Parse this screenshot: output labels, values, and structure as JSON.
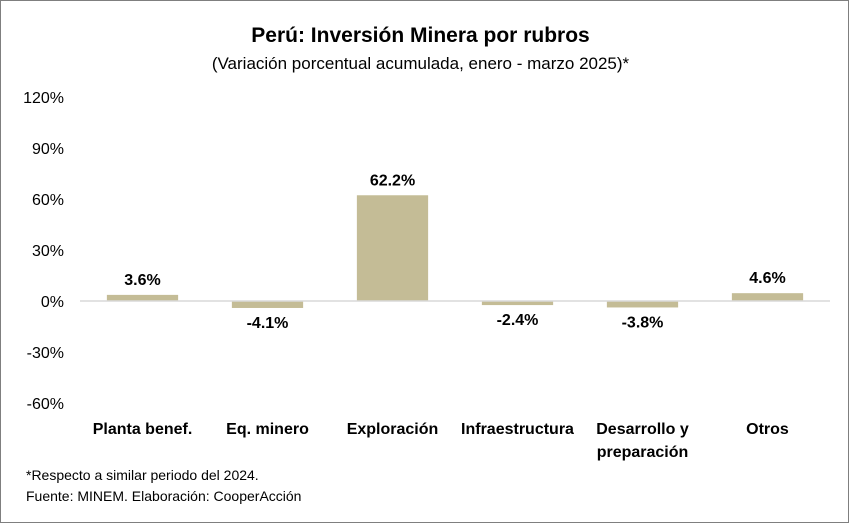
{
  "chart_data": {
    "type": "bar",
    "title": "Perú: Inversión Minera por rubros",
    "subtitle": "(Variación porcentual acumulada, enero - marzo 2025)*",
    "categories": [
      [
        "Planta benef."
      ],
      [
        "Eq. minero"
      ],
      [
        "Exploración"
      ],
      [
        "Infraestructura"
      ],
      [
        "Desarrollo y",
        "preparación"
      ],
      [
        "Otros"
      ]
    ],
    "values": [
      3.6,
      -4.1,
      62.2,
      -2.4,
      -3.8,
      4.6
    ],
    "data_labels": [
      "3.6%",
      "-4.1%",
      "62.2%",
      "-2.4%",
      "-3.8%",
      "4.6%"
    ],
    "ylim": [
      -60,
      120
    ],
    "yticks": [
      120,
      90,
      60,
      30,
      0,
      -30,
      -60
    ],
    "ytick_labels": [
      "120%",
      "90%",
      "60%",
      "30%",
      "0%",
      "-30%",
      "-60%"
    ],
    "grid": false,
    "bar_color": "#c4bc96"
  },
  "footnotes": {
    "note": "*Respecto a similar periodo del 2024.",
    "source": "Fuente: MINEM. Elaboración: CooperAcción"
  }
}
